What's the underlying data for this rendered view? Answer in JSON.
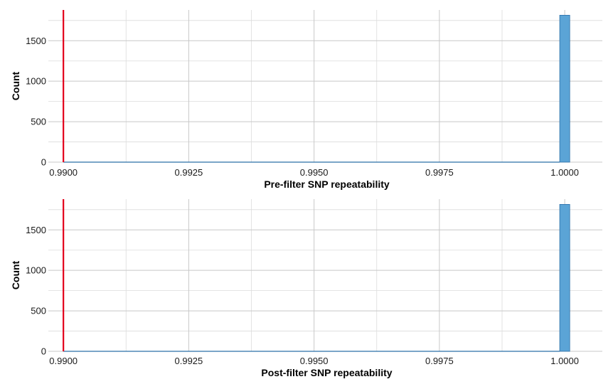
{
  "colors": {
    "bar_fill": "#5BA4D6",
    "bar_stroke": "#2B6FA8",
    "reference_line": "#E3001B",
    "grid_major": "#C8C8C8",
    "grid_minor": "#DCDCDC",
    "tick_label": "#1a1a1a",
    "background": "#FFFFFF"
  },
  "chart_data": [
    {
      "type": "bar",
      "chart_subtype": "histogram",
      "xlabel": "Pre-filter SNP repeatability",
      "ylabel": "Count",
      "xlim": [
        0.9897,
        1.00075
      ],
      "ylim": [
        0,
        1880
      ],
      "x_ticks": [
        0.99,
        0.9925,
        0.995,
        0.9975,
        1.0
      ],
      "x_tick_labels": [
        "0.9900",
        "0.9925",
        "0.9950",
        "0.9975",
        "1.0000"
      ],
      "y_ticks": [
        0,
        500,
        1000,
        1500
      ],
      "y_tick_labels": [
        "0",
        "500",
        "1000",
        "1500"
      ],
      "bins": [
        {
          "x_start": 0.99,
          "x_end": 0.9999,
          "count": 0
        },
        {
          "x_start": 0.9999,
          "x_end": 1.0001,
          "count": 1815
        }
      ],
      "reference_line_x": 0.99,
      "grid": true,
      "legend": "none"
    },
    {
      "type": "bar",
      "chart_subtype": "histogram",
      "xlabel": "Post-filter SNP repeatability",
      "ylabel": "Count",
      "xlim": [
        0.9897,
        1.00075
      ],
      "ylim": [
        0,
        1880
      ],
      "x_ticks": [
        0.99,
        0.9925,
        0.995,
        0.9975,
        1.0
      ],
      "x_tick_labels": [
        "0.9900",
        "0.9925",
        "0.9950",
        "0.9975",
        "1.0000"
      ],
      "y_ticks": [
        0,
        500,
        1000,
        1500
      ],
      "y_tick_labels": [
        "0",
        "500",
        "1000",
        "1500"
      ],
      "bins": [
        {
          "x_start": 0.99,
          "x_end": 0.9999,
          "count": 0
        },
        {
          "x_start": 0.9999,
          "x_end": 1.0001,
          "count": 1815
        }
      ],
      "reference_line_x": 0.99,
      "grid": true,
      "legend": "none"
    }
  ]
}
